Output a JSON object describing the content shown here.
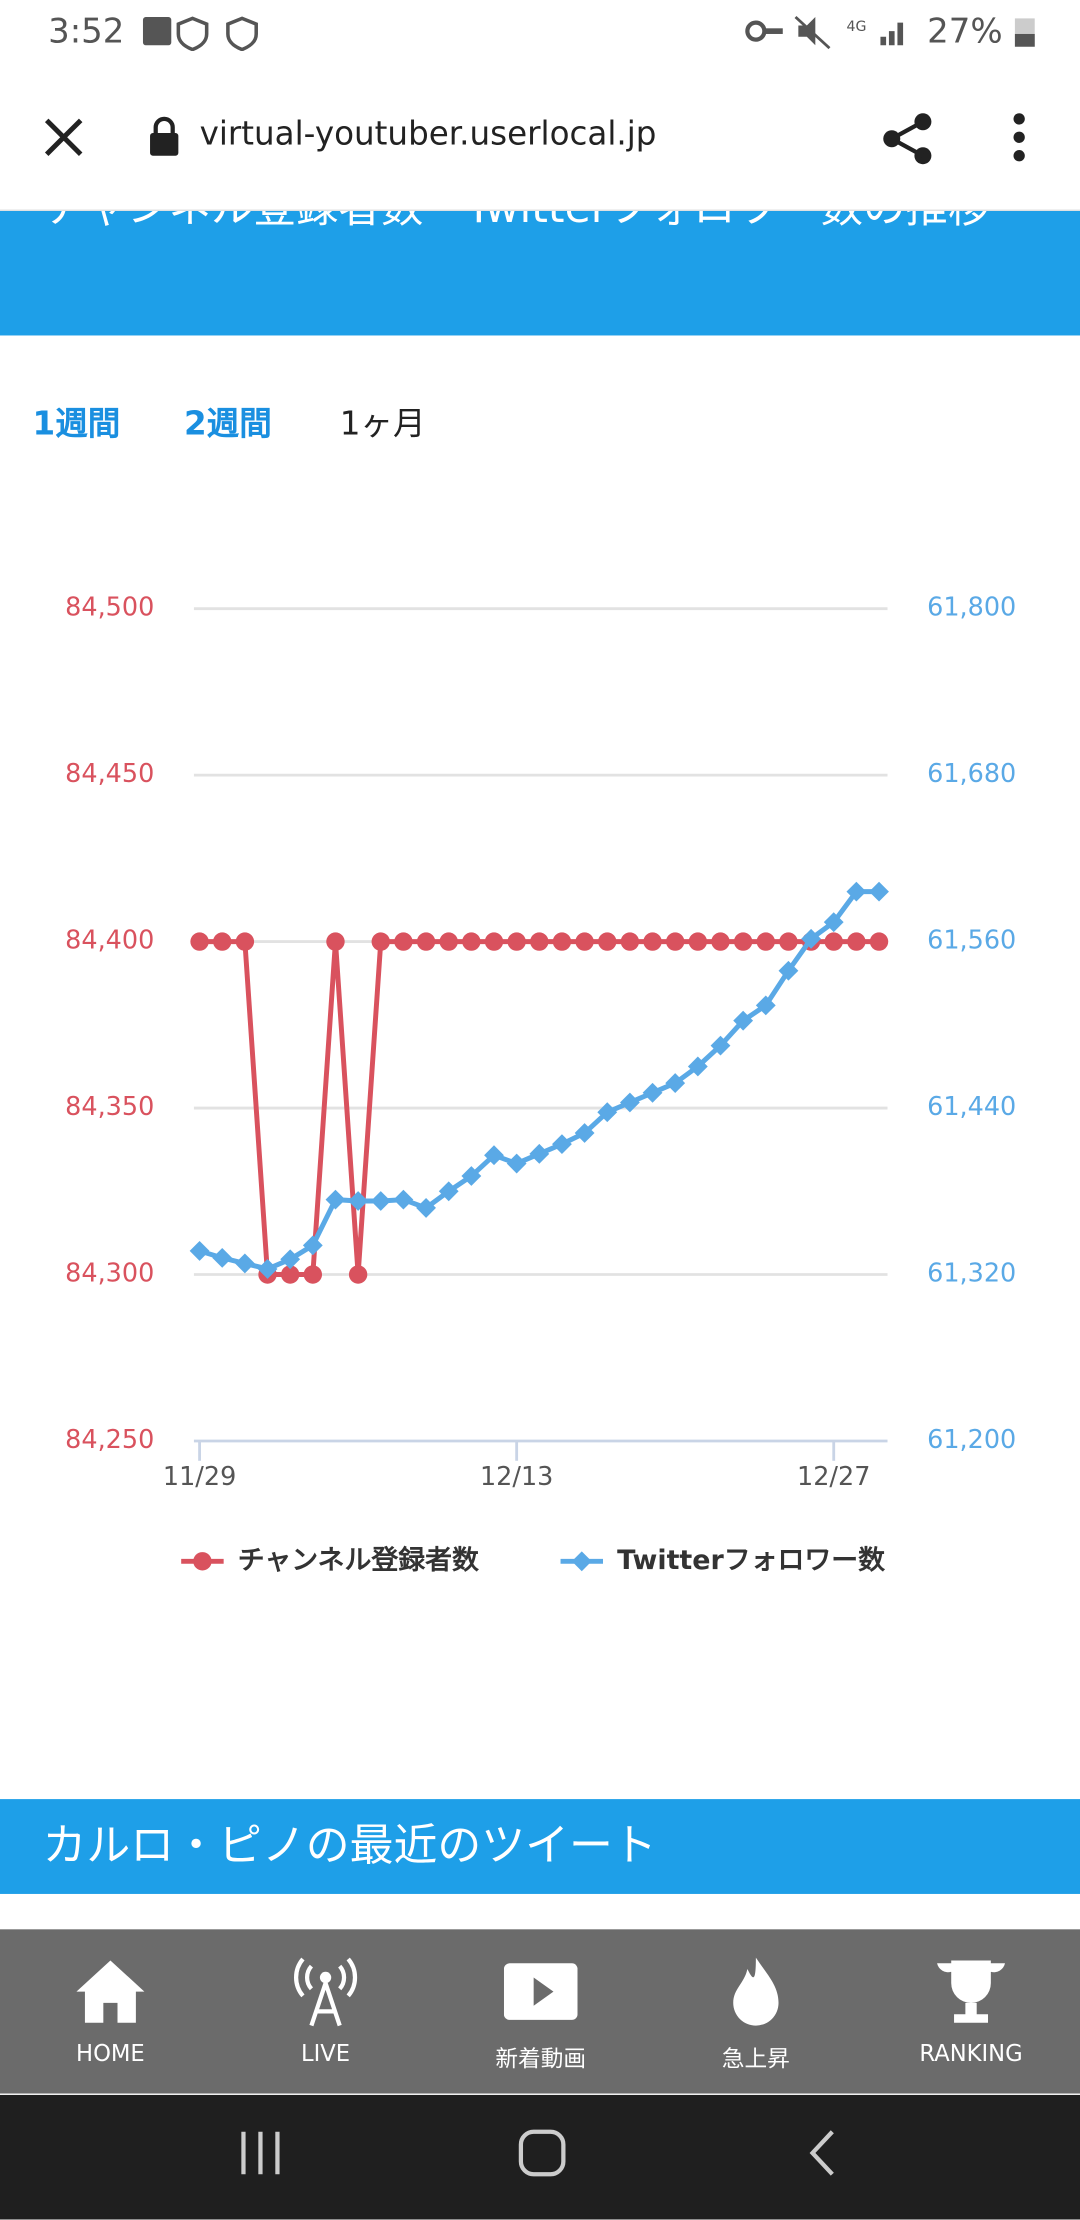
{
  "status_bar": {
    "time": "3:52",
    "battery": "27%"
  },
  "browser": {
    "url": "virtual-youtuber.userlocal.jp"
  },
  "section_header": {
    "title": "チャンネル登録者数・Twitterフォロワー数の推移"
  },
  "tabs": [
    "1週間",
    "2週間",
    "1ヶ月"
  ],
  "chart_data": {
    "type": "line",
    "categories": [
      "11/29",
      null,
      null,
      null,
      null,
      null,
      null,
      null,
      null,
      null,
      null,
      null,
      null,
      null,
      "12/13",
      null,
      null,
      null,
      null,
      null,
      null,
      null,
      null,
      null,
      null,
      null,
      null,
      null,
      "12/27",
      null,
      null
    ],
    "series": [
      {
        "name": "チャンネル登録者数",
        "color": "#d9525e",
        "marker": "circle",
        "values": [
          84400,
          84400,
          84400,
          84300,
          84300,
          84300,
          84400,
          84300,
          84400,
          84400,
          84400,
          84400,
          84400,
          84400,
          84400,
          84400,
          84400,
          84400,
          84400,
          84400,
          84400,
          84400,
          84400,
          84400,
          84400,
          84400,
          84400,
          84400,
          84400,
          84400,
          84400
        ]
      },
      {
        "name": "Twitterフォロワー数",
        "color": "#5aa9e6",
        "marker": "diamond",
        "axis": "y2",
        "values": [
          61337,
          61332,
          61328,
          61324,
          61331,
          61341,
          61374,
          61373,
          61373,
          61374,
          61368,
          61380,
          61391,
          61406,
          61400,
          61407,
          61414,
          61422,
          61437,
          61444,
          61451,
          61458,
          61470,
          61485,
          61503,
          61514,
          61539,
          61562,
          61574,
          61596,
          61596
        ]
      }
    ],
    "ylim": [
      84250,
      84500
    ],
    "yticks": [
      {
        "value": 84250,
        "label": "84,250"
      },
      {
        "value": 84300,
        "label": "84,300"
      },
      {
        "value": 84350,
        "label": "84,350"
      },
      {
        "value": 84400,
        "label": "84,400"
      },
      {
        "value": 84450,
        "label": "84,450"
      },
      {
        "value": 84500,
        "label": "84,500"
      }
    ],
    "y2lim": [
      61200,
      61800
    ],
    "y2ticks": [
      {
        "value": 61200,
        "label": "61,200"
      },
      {
        "value": 61320,
        "label": "61,320"
      },
      {
        "value": 61440,
        "label": "61,440"
      },
      {
        "value": 61560,
        "label": "61,560"
      },
      {
        "value": 61680,
        "label": "61,680"
      },
      {
        "value": 61800,
        "label": "61,800"
      }
    ],
    "grid": true,
    "legend": "bottom"
  },
  "banner": {
    "title": "カルロ・ピノの最近のツイート"
  },
  "bottom_nav": [
    "HOME",
    "LIVE",
    "新着動画",
    "急上昇",
    "RANKING"
  ]
}
